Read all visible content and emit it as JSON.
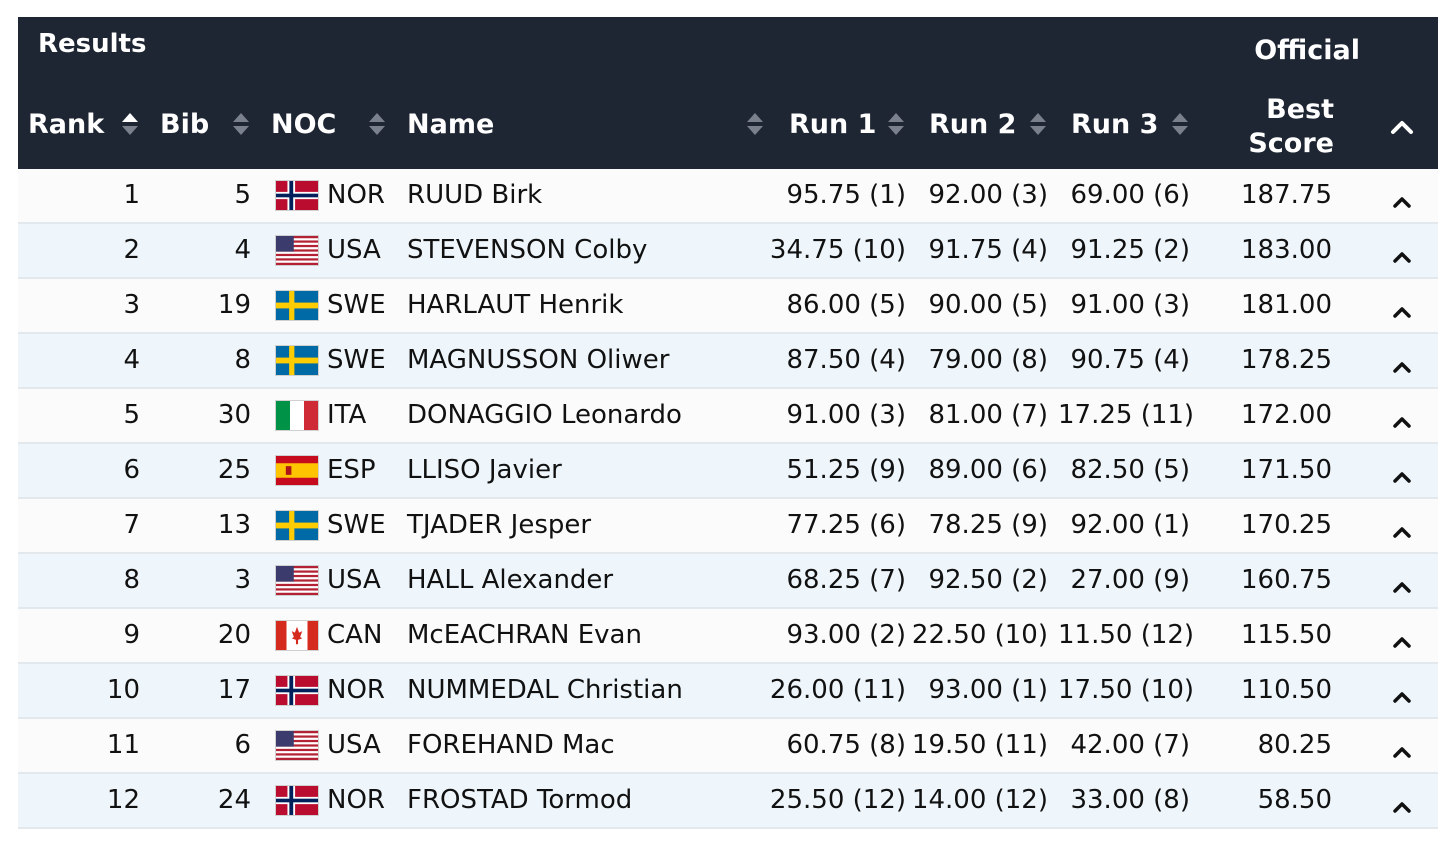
{
  "header": {
    "title": "Results",
    "official": "Official",
    "columns": {
      "rank": "Rank",
      "bib": "Bib",
      "noc": "NOC",
      "name": "Name",
      "run1": "Run 1",
      "run2": "Run 2",
      "run3": "Run 3",
      "best_line1": "Best",
      "best_line2": "Score"
    }
  },
  "colors": {
    "header_bg": "#1f2633",
    "row_alt": "#eef6fb"
  },
  "rows": [
    {
      "rank": "1",
      "bib": "5",
      "flag": "norway-flag-icon",
      "noc": "NOR",
      "name": "RUUD Birk",
      "run1": "95.75 (1)",
      "run2": "92.00 (3)",
      "run3": "69.00 (6)",
      "best": "187.75"
    },
    {
      "rank": "2",
      "bib": "4",
      "flag": "usa-flag-icon",
      "noc": "USA",
      "name": "STEVENSON Colby",
      "run1": "34.75 (10)",
      "run2": "91.75 (4)",
      "run3": "91.25 (2)",
      "best": "183.00"
    },
    {
      "rank": "3",
      "bib": "19",
      "flag": "sweden-flag-icon",
      "noc": "SWE",
      "name": "HARLAUT Henrik",
      "run1": "86.00 (5)",
      "run2": "90.00 (5)",
      "run3": "91.00 (3)",
      "best": "181.00"
    },
    {
      "rank": "4",
      "bib": "8",
      "flag": "sweden-flag-icon",
      "noc": "SWE",
      "name": "MAGNUSSON Oliwer",
      "run1": "87.50 (4)",
      "run2": "79.00 (8)",
      "run3": "90.75 (4)",
      "best": "178.25"
    },
    {
      "rank": "5",
      "bib": "30",
      "flag": "italy-flag-icon",
      "noc": "ITA",
      "name": "DONAGGIO Leonardo",
      "run1": "91.00 (3)",
      "run2": "81.00 (7)",
      "run3": "17.25 (11)",
      "best": "172.00"
    },
    {
      "rank": "6",
      "bib": "25",
      "flag": "spain-flag-icon",
      "noc": "ESP",
      "name": "LLISO Javier",
      "run1": "51.25 (9)",
      "run2": "89.00 (6)",
      "run3": "82.50 (5)",
      "best": "171.50"
    },
    {
      "rank": "7",
      "bib": "13",
      "flag": "sweden-flag-icon",
      "noc": "SWE",
      "name": "TJADER Jesper",
      "run1": "77.25 (6)",
      "run2": "78.25 (9)",
      "run3": "92.00 (1)",
      "best": "170.25"
    },
    {
      "rank": "8",
      "bib": "3",
      "flag": "usa-flag-icon",
      "noc": "USA",
      "name": "HALL Alexander",
      "run1": "68.25 (7)",
      "run2": "92.50 (2)",
      "run3": "27.00 (9)",
      "best": "160.75"
    },
    {
      "rank": "9",
      "bib": "20",
      "flag": "canada-flag-icon",
      "noc": "CAN",
      "name": "McEACHRAN Evan",
      "run1": "93.00 (2)",
      "run2": "22.50 (10)",
      "run3": "11.50 (12)",
      "best": "115.50"
    },
    {
      "rank": "10",
      "bib": "17",
      "flag": "norway-flag-icon",
      "noc": "NOR",
      "name": "NUMMEDAL Christian",
      "run1": "26.00 (11)",
      "run2": "93.00 (1)",
      "run3": "17.50 (10)",
      "best": "110.50"
    },
    {
      "rank": "11",
      "bib": "6",
      "flag": "usa-flag-icon",
      "noc": "USA",
      "name": "FOREHAND Mac",
      "run1": "60.75 (8)",
      "run2": "19.50 (11)",
      "run3": "42.00 (7)",
      "best": "80.25"
    },
    {
      "rank": "12",
      "bib": "24",
      "flag": "norway-flag-icon",
      "noc": "NOR",
      "name": "FROSTAD Tormod",
      "run1": "25.50 (12)",
      "run2": "14.00 (12)",
      "run3": "33.00 (8)",
      "best": "58.50"
    }
  ]
}
